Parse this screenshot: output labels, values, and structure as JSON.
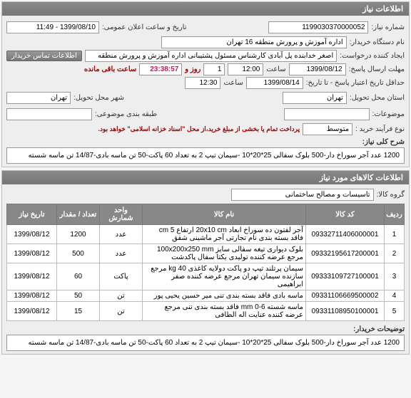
{
  "panel1": {
    "title": "اطلاعات نیاز",
    "need_no_label": "شماره نیاز:",
    "need_no": "1199030370000052",
    "announce_label": "تاریخ و ساعت اعلان عمومی:",
    "announce": "1399/08/10 - 11:49",
    "org_label": "نام دستگاه خریدار:",
    "org": "اداره آموزش و پرورش منطقه 16 تهران",
    "creator_label": "ایجاد کننده درخواست:",
    "creator": "اصغر خدابنده پل آبادی کارشناس مسئول پشتیبانی اداره آموزش و پرورش منطقه",
    "contact_btn": "اطلاعات تماس خریدار",
    "deadline_label": "مهلت ارسال پاسخ:",
    "deadline_date": "1399/08/12",
    "deadline_time_label": "ساعت",
    "deadline_time": "12:00",
    "remaining_days": "1",
    "remaining_days_label": "روز و",
    "countdown": "23:38:57",
    "remaining_label": "ساعت باقی مانده",
    "validity_label": "حداقل تاریخ اعتبار پاسخ - تا تاریخ:",
    "validity_date": "1399/08/14",
    "validity_time_label": "ساعت",
    "validity_time": "12:30",
    "deliver_state_label": "استان محل تحویل:",
    "deliver_state": "تهران",
    "deliver_city_label": "شهر محل تحویل:",
    "deliver_city": "تهران",
    "attach_label": "موضوعات:",
    "attach_field": "",
    "packaging_label": "طبقه بندی موضوعی:",
    "budget_label": "نوع فرآیند خرید :",
    "budget_val": "متوسط",
    "budget_note": "پرداخت تمام یا بخشی از مبلغ خرید،از محل \"اسناد خزانه اسلامی\" خواهد بود.",
    "overall_label": "شرح کلی نیاز:",
    "overall_desc": "1200 عدد آجر سوراخ دار-500 بلوک سفالی 25*20*10 -سیمان تیپ 2  به  تعداد 60 پاکت-50 تن ماسه بادی-14/87 تن ماسه شسته"
  },
  "panel2": {
    "title": "اطلاعات کالاهای مورد نیاز",
    "group_label": "گروه کالا:",
    "group": "تاسیسات و مصالح ساختمانی",
    "columns": [
      "ردیف",
      "کد کالا",
      "نام کالا",
      "واحد شمارش",
      "تعداد / مقدار",
      "تاریخ نیاز"
    ],
    "rows": [
      [
        "1",
        "09332711406000001",
        "آجر لفتون ده سوراخ ابعاد 20x10 cm ارتفاع 5 cm فاقد بسته بندی نام تجارتی آجر ماشینی شفق",
        "عدد",
        "1200",
        "1399/08/12"
      ],
      [
        "2",
        "09332195617200001",
        "بلوک دیواری تیغه سفالی سایز 100x200x250 mm مرجع عرضه کننده تولیدی یکتا سفال پاکدشت",
        "عدد",
        "500",
        "1399/08/12"
      ],
      [
        "3",
        "09333109727100001",
        "سیمان پرتلند تیپ دو پاکت دولایه کاغذی 40 kg مرجع سازنده سیمان تهران مرجع عرضه کننده صفر ابراهیمی",
        "پاکت",
        "60",
        "1399/08/12"
      ],
      [
        "4",
        "09331106669500002",
        "ماسه بادی فاقد بسته بندی تنی میر حسین یحیی پور",
        "تن",
        "50",
        "1399/08/12"
      ],
      [
        "5",
        "09331108950100001",
        "ماسه شسته 6-0 mm فاقد بسته بندی تنی مرجع عرضه کننده عنایت اله الطافی",
        "تن",
        "15",
        "1399/08/12"
      ]
    ],
    "buyer_notes_label": "توضیحات خریدار:",
    "buyer_notes": "1200 عدد آجر سوراخ دار-500 بلوک سفالی 25*20*10 -سیمان تیپ 2  به  تعداد 60 پاکت-50 تن ماسه بادی-14/87 تن ماسه شسته"
  }
}
